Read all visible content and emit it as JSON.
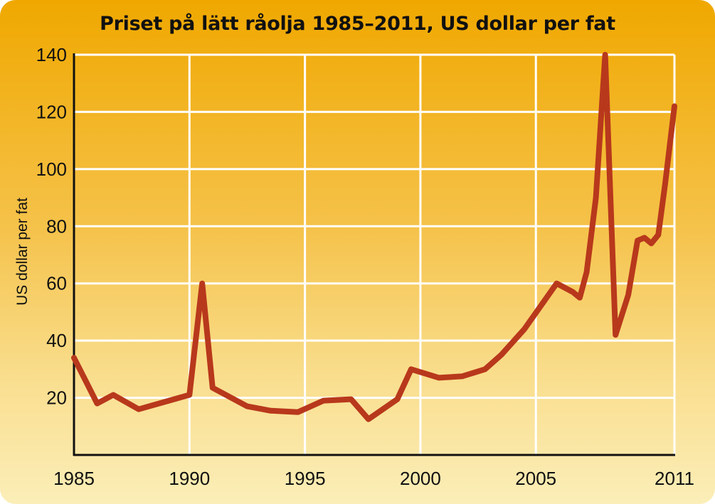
{
  "chart_data": {
    "type": "line",
    "title": "Priset på lätt råolja 1985–2011, US dollar per fat",
    "xlabel": "",
    "ylabel": "US dollar per fat",
    "xlim": [
      1985,
      2011
    ],
    "ylim": [
      0,
      140
    ],
    "x_ticks": [
      1985,
      1990,
      1995,
      2000,
      2005,
      2011
    ],
    "y_ticks": [
      20,
      40,
      60,
      80,
      100,
      120,
      140
    ],
    "grid": true,
    "line_color": "#b8381c",
    "grid_color": "#ffffff",
    "series": [
      {
        "x": [
          1985,
          1986,
          1986.7,
          1987.8,
          1990,
          1990.55,
          1991,
          1992.5,
          1993.5,
          1994.7,
          1995.8,
          1997,
          1997.75,
          1999,
          1999.6,
          2000.8,
          2001.8,
          2002.8,
          2003.5,
          2004.5,
          2005.2,
          2005.9,
          2006.6,
          2006.9,
          2007.2,
          2007.6,
          2008.0,
          2008.45,
          2009.0,
          2009.4,
          2009.7,
          2010.0,
          2010.3,
          2010.6,
          2011
        ],
        "y": [
          34,
          18,
          21,
          16,
          21,
          60,
          23.5,
          17,
          15.5,
          15,
          19,
          19.5,
          12.5,
          19.5,
          30,
          27,
          27.5,
          30,
          35,
          44,
          52,
          60,
          57,
          55,
          64,
          90,
          140,
          42,
          56,
          75,
          76,
          74,
          77,
          95,
          122
        ]
      }
    ]
  }
}
